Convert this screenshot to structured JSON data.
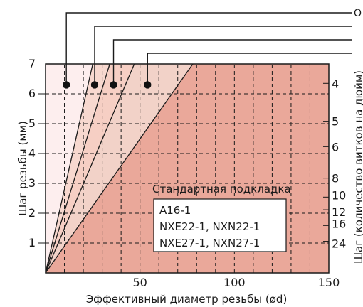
{
  "chart_data": {
    "type": "area",
    "xlabel": "Эффективный диаметр резьбы (ød)",
    "ylabel": "Шаг резьбы (мм)",
    "y2label": "Шаг (количество витков на дюйм)",
    "xlim": [
      0,
      150
    ],
    "ylim": [
      0,
      7
    ],
    "x_ticks": [
      50,
      100,
      150
    ],
    "y_ticks": [
      1,
      2,
      3,
      4,
      5,
      6,
      7
    ],
    "x_grid": [
      10,
      20,
      30,
      40,
      50,
      60,
      70,
      80,
      90,
      100,
      110,
      120,
      130,
      140
    ],
    "y_grid": [
      1,
      2,
      3,
      4,
      5,
      6
    ],
    "y2_ticks": [
      {
        "label": "4",
        "pitch": 6.35
      },
      {
        "label": "5",
        "pitch": 5.08
      },
      {
        "label": "6",
        "pitch": 4.23
      },
      {
        "label": "8",
        "pitch": 3.175
      },
      {
        "label": "10",
        "pitch": 2.54
      },
      {
        "label": "12",
        "pitch": 2.117
      },
      {
        "label": "16",
        "pitch": 1.5875
      },
      {
        "label": "24",
        "pitch": 1.058
      }
    ],
    "boundary_lines": [
      {
        "x_at_ymax": 25
      },
      {
        "x_at_ymax": 34
      },
      {
        "x_at_ymax": 47
      },
      {
        "x_at_ymax": 78
      }
    ],
    "zone_colors": [
      "#fdeeee",
      "#f7d8cf",
      "#f6cfc4",
      "#f2d2c8",
      "#eaa89a"
    ],
    "markers": [
      {
        "x": 11,
        "y": 6.3,
        "label": "O"
      },
      {
        "x": 26,
        "y": 6.3,
        "label": ""
      },
      {
        "x": 36,
        "y": 6.3,
        "label": ""
      },
      {
        "x": 54,
        "y": 6.3,
        "label": ""
      }
    ],
    "standard_box": {
      "title": "Стандартная подкладка",
      "items": [
        "A16-1",
        "NXE22-1, NXN22-1",
        "NXE27-1, NXN27-1"
      ]
    }
  }
}
